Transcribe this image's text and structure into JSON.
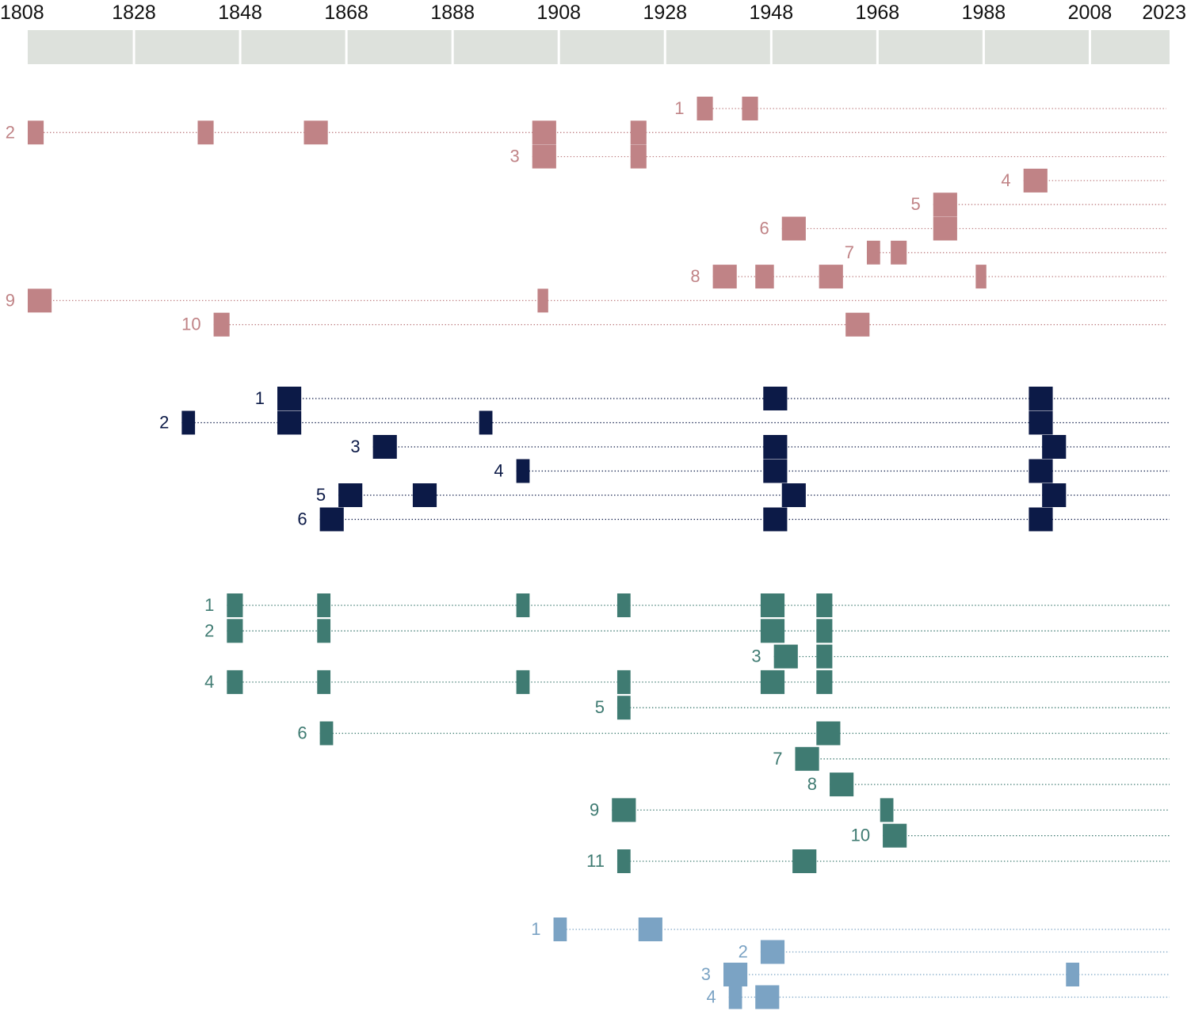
{
  "chart_data": {
    "type": "timeline",
    "x_axis": {
      "start": 1808,
      "end": 2023,
      "tick_labels": [
        1808,
        1828,
        1848,
        1868,
        1888,
        1908,
        1928,
        1948,
        1968,
        1988,
        2008,
        2023
      ],
      "band_boundaries": [
        1808,
        1828,
        1848,
        1868,
        1888,
        1908,
        1928,
        1948,
        1968,
        1988,
        2008,
        2023
      ]
    },
    "groups": [
      {
        "color": "#c08386",
        "rows": [
          {
            "label": "1",
            "events": [
              [
                1934,
                1937
              ],
              [
                1942.5,
                1945.5
              ]
            ]
          },
          {
            "label": "2",
            "events": [
              [
                1808,
                1811
              ],
              [
                1840,
                1843
              ],
              [
                1860,
                1864.5
              ],
              [
                1903,
                1907.5
              ],
              [
                1921.5,
                1924.5
              ]
            ]
          },
          {
            "label": "3",
            "events": [
              [
                1903,
                1907.5
              ],
              [
                1921.5,
                1924.5
              ]
            ]
          },
          {
            "label": "4",
            "events": [
              [
                1995.5,
                2000
              ]
            ]
          },
          {
            "label": "5",
            "events": [
              [
                1978.5,
                1983
              ]
            ]
          },
          {
            "label": "6",
            "events": [
              [
                1950,
                1954.5
              ],
              [
                1978.5,
                1983
              ]
            ]
          },
          {
            "label": "7",
            "events": [
              [
                1966,
                1968.5
              ],
              [
                1970.5,
                1973.5
              ]
            ]
          },
          {
            "label": "8",
            "events": [
              [
                1937,
                1941.5
              ],
              [
                1945,
                1948.5
              ],
              [
                1957,
                1961.5
              ],
              [
                1986.5,
                1988.5
              ]
            ]
          },
          {
            "label": "9",
            "events": [
              [
                1808,
                1812.5
              ],
              [
                1904,
                1906
              ]
            ]
          },
          {
            "label": "10",
            "events": [
              [
                1843,
                1846
              ],
              [
                1962,
                1966.5
              ]
            ]
          }
        ]
      },
      {
        "color": "#0c1a47",
        "rows": [
          {
            "label": "1",
            "events": [
              [
                1855,
                1859.5
              ],
              [
                1946.5,
                1951
              ],
              [
                1996.5,
                2001
              ]
            ]
          },
          {
            "label": "2",
            "events": [
              [
                1837,
                1839.5
              ],
              [
                1855,
                1859.5
              ],
              [
                1893,
                1895.5
              ],
              [
                1996.5,
                2001
              ]
            ]
          },
          {
            "label": "3",
            "events": [
              [
                1873,
                1877.5
              ],
              [
                1946.5,
                1951
              ],
              [
                1999,
                2003.5
              ]
            ]
          },
          {
            "label": "4",
            "events": [
              [
                1900,
                1902.5
              ],
              [
                1946.5,
                1951
              ],
              [
                1996.5,
                2001
              ]
            ]
          },
          {
            "label": "5",
            "events": [
              [
                1866.5,
                1871
              ],
              [
                1880.5,
                1885
              ],
              [
                1950,
                1954.5
              ],
              [
                1999,
                2003.5
              ]
            ]
          },
          {
            "label": "6",
            "events": [
              [
                1863,
                1867.5
              ],
              [
                1946.5,
                1951
              ],
              [
                1996.5,
                2001
              ]
            ]
          }
        ]
      },
      {
        "color": "#3f7b72",
        "rows": [
          {
            "label": "1",
            "events": [
              [
                1845.5,
                1848.5
              ],
              [
                1862.5,
                1865
              ],
              [
                1900,
                1902.5
              ],
              [
                1919,
                1921.5
              ],
              [
                1946,
                1950.5
              ],
              [
                1956.5,
                1959.5
              ]
            ]
          },
          {
            "label": "2",
            "events": [
              [
                1845.5,
                1848.5
              ],
              [
                1862.5,
                1865
              ],
              [
                1946,
                1950.5
              ],
              [
                1956.5,
                1959.5
              ]
            ]
          },
          {
            "label": "3",
            "events": [
              [
                1948.5,
                1953
              ],
              [
                1956.5,
                1959.5
              ]
            ]
          },
          {
            "label": "4",
            "events": [
              [
                1845.5,
                1848.5
              ],
              [
                1862.5,
                1865
              ],
              [
                1900,
                1902.5
              ],
              [
                1919,
                1921.5
              ],
              [
                1946,
                1950.5
              ],
              [
                1956.5,
                1959.5
              ]
            ]
          },
          {
            "label": "5",
            "events": [
              [
                1919,
                1921.5
              ]
            ]
          },
          {
            "label": "6",
            "events": [
              [
                1863,
                1865.5
              ],
              [
                1956.5,
                1961
              ]
            ]
          },
          {
            "label": "7",
            "events": [
              [
                1952.5,
                1957
              ]
            ]
          },
          {
            "label": "8",
            "events": [
              [
                1959,
                1963.5
              ]
            ]
          },
          {
            "label": "9",
            "events": [
              [
                1918,
                1922.5
              ],
              [
                1968.5,
                1971
              ]
            ]
          },
          {
            "label": "10",
            "events": [
              [
                1969,
                1973.5
              ]
            ]
          },
          {
            "label": "11",
            "events": [
              [
                1919,
                1921.5
              ],
              [
                1952,
                1956.5
              ]
            ]
          }
        ]
      },
      {
        "color": "#7ba3c4",
        "rows": [
          {
            "label": "1",
            "events": [
              [
                1907,
                1909.5
              ],
              [
                1923,
                1927.5
              ]
            ]
          },
          {
            "label": "2",
            "events": [
              [
                1946,
                1950.5
              ]
            ]
          },
          {
            "label": "3",
            "events": [
              [
                1939,
                1943.5
              ],
              [
                2003.5,
                2006
              ]
            ]
          },
          {
            "label": "4",
            "events": [
              [
                1940,
                1942.5
              ],
              [
                1945,
                1949.5
              ]
            ]
          }
        ]
      }
    ]
  }
}
